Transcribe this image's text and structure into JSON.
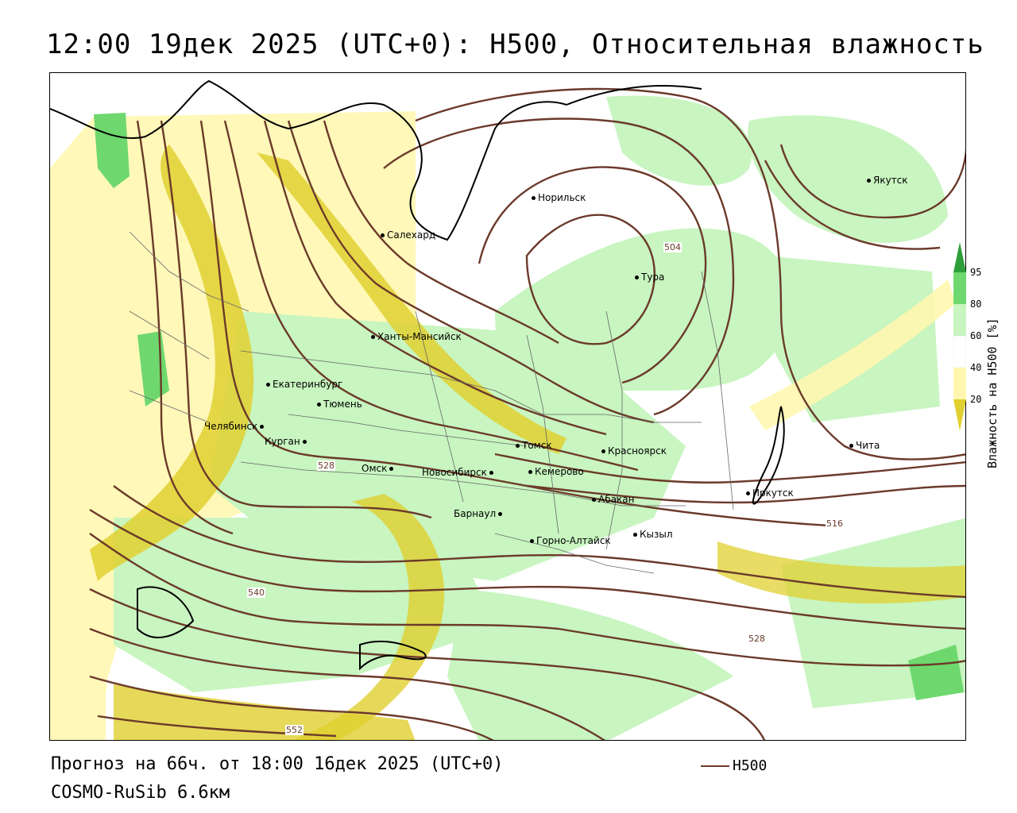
{
  "title": "12:00 19дек 2025 (UTC+0): H500, Относительная влажность",
  "footer": {
    "forecast": "Прогноз на 66ч. от 18:00 16дек 2025 (UTC+0)",
    "model": "COSMO-RuSib 6.6км"
  },
  "legend": {
    "line_label": "H500",
    "line_color": "#6b3a2a"
  },
  "colorbar": {
    "title": "Влажность на H500 [%]",
    "ticks": [
      "95",
      "80",
      "60",
      "40",
      "20"
    ],
    "colors": {
      "c95": "#2e9e3a",
      "c80": "#6ed86e",
      "c60": "#c8f5c0",
      "c40": "#ffffff",
      "c20": "#fff7b0",
      "c0": "#e0d030"
    }
  },
  "cities": [
    {
      "name": "Якутск"
    },
    {
      "name": "Норильск"
    },
    {
      "name": "Салехард"
    },
    {
      "name": "Тура"
    },
    {
      "name": "Ханты-Мансийск"
    },
    {
      "name": "Екатеринбург"
    },
    {
      "name": "Тюмень"
    },
    {
      "name": "Челябинск"
    },
    {
      "name": "Курган"
    },
    {
      "name": "Омск"
    },
    {
      "name": "Новосибирск"
    },
    {
      "name": "Томск"
    },
    {
      "name": "Кемерово"
    },
    {
      "name": "Красноярск"
    },
    {
      "name": "Абакан"
    },
    {
      "name": "Барнаул"
    },
    {
      "name": "Горно-Алтайск"
    },
    {
      "name": "Кызыл"
    },
    {
      "name": "Иркутск"
    },
    {
      "name": "Чита"
    }
  ],
  "contour_labels": [
    "504",
    "516",
    "528",
    "540",
    "528",
    "552"
  ]
}
